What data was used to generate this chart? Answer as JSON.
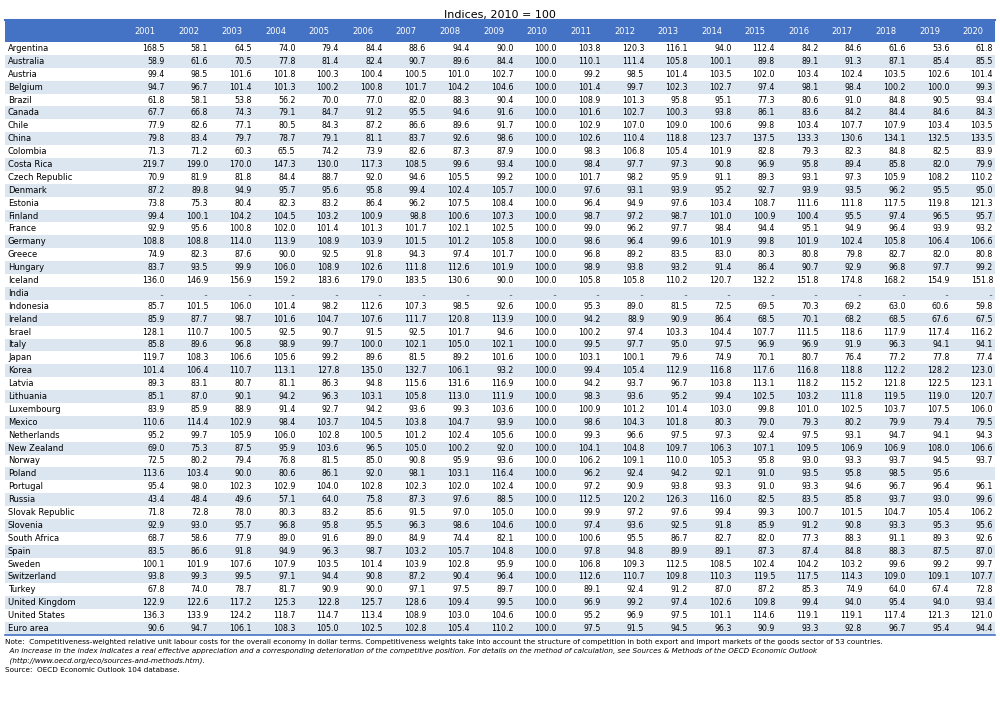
{
  "title": "Indices, 2010 = 100",
  "columns": [
    "2001",
    "2002",
    "2003",
    "2004",
    "2005",
    "2006",
    "2007",
    "2008",
    "2009",
    "2010",
    "2011",
    "2012",
    "2013",
    "2014",
    "2015",
    "2016",
    "2017",
    "2018",
    "2019",
    "2020"
  ],
  "rows": [
    [
      "Argentina",
      "168.5",
      "58.1",
      "64.5",
      "74.0",
      "79.4",
      "84.4",
      "88.6",
      "94.4",
      "90.0",
      "100.0",
      "103.8",
      "120.3",
      "116.1",
      "94.0",
      "112.4",
      "84.2",
      "84.6",
      "61.6",
      "53.6",
      "61.8"
    ],
    [
      "Australia",
      "58.9",
      "61.6",
      "70.5",
      "77.8",
      "81.4",
      "82.4",
      "90.7",
      "89.6",
      "84.4",
      "100.0",
      "110.1",
      "111.4",
      "105.8",
      "100.1",
      "89.8",
      "89.1",
      "91.3",
      "87.1",
      "85.4",
      "85.5"
    ],
    [
      "Austria",
      "99.4",
      "98.5",
      "101.6",
      "101.8",
      "100.3",
      "100.4",
      "100.5",
      "101.0",
      "102.7",
      "100.0",
      "99.2",
      "98.5",
      "101.4",
      "103.5",
      "102.0",
      "103.4",
      "102.4",
      "103.5",
      "102.6",
      "101.4"
    ],
    [
      "Belgium",
      "94.7",
      "96.7",
      "101.4",
      "101.3",
      "100.2",
      "100.8",
      "101.7",
      "104.2",
      "104.6",
      "100.0",
      "101.4",
      "99.7",
      "102.3",
      "102.7",
      "97.4",
      "98.1",
      "98.4",
      "100.2",
      "100.0",
      "99.3"
    ],
    [
      "Brazil",
      "61.8",
      "58.1",
      "53.8",
      "56.2",
      "70.0",
      "77.0",
      "82.0",
      "88.3",
      "90.4",
      "100.0",
      "108.9",
      "101.3",
      "95.8",
      "95.1",
      "77.3",
      "80.6",
      "91.0",
      "84.8",
      "90.5",
      "93.4"
    ],
    [
      "Canada",
      "67.7",
      "66.8",
      "74.3",
      "79.1",
      "84.7",
      "91.2",
      "95.5",
      "94.6",
      "91.6",
      "100.0",
      "101.6",
      "102.7",
      "100.3",
      "93.8",
      "86.1",
      "83.6",
      "84.2",
      "84.4",
      "84.6",
      "84.3"
    ],
    [
      "Chile",
      "77.9",
      "82.6",
      "77.1",
      "80.5",
      "84.3",
      "87.2",
      "86.6",
      "89.6",
      "91.7",
      "100.0",
      "102.9",
      "107.0",
      "109.0",
      "100.6",
      "99.8",
      "103.4",
      "107.7",
      "107.9",
      "103.4",
      "103.5"
    ],
    [
      "China",
      "79.8",
      "83.4",
      "79.7",
      "78.7",
      "79.1",
      "81.1",
      "83.7",
      "92.6",
      "98.6",
      "100.0",
      "102.6",
      "110.4",
      "118.8",
      "123.7",
      "137.5",
      "133.3",
      "130.6",
      "134.1",
      "132.5",
      "133.5"
    ],
    [
      "Colombia",
      "71.3",
      "71.2",
      "60.3",
      "65.5",
      "74.2",
      "73.9",
      "82.6",
      "87.3",
      "87.9",
      "100.0",
      "98.3",
      "106.8",
      "105.4",
      "101.9",
      "82.8",
      "79.3",
      "82.3",
      "84.8",
      "82.5",
      "83.9"
    ],
    [
      "Costa Rica",
      "219.7",
      "199.0",
      "170.0",
      "147.3",
      "130.0",
      "117.3",
      "108.5",
      "99.6",
      "93.4",
      "100.0",
      "98.4",
      "97.7",
      "97.3",
      "90.8",
      "96.9",
      "95.8",
      "89.4",
      "85.8",
      "82.0",
      "79.9"
    ],
    [
      "Czech Republic",
      "70.9",
      "81.9",
      "81.8",
      "84.4",
      "88.7",
      "92.0",
      "94.6",
      "105.5",
      "99.2",
      "100.0",
      "101.7",
      "98.2",
      "95.9",
      "91.1",
      "89.3",
      "93.1",
      "97.3",
      "105.9",
      "108.2",
      "110.2"
    ],
    [
      "Denmark",
      "87.2",
      "89.8",
      "94.9",
      "95.7",
      "95.6",
      "95.8",
      "99.4",
      "102.4",
      "105.7",
      "100.0",
      "97.6",
      "93.1",
      "93.9",
      "95.2",
      "92.7",
      "93.9",
      "93.5",
      "96.2",
      "95.5",
      "95.0"
    ],
    [
      "Estonia",
      "73.8",
      "75.3",
      "80.4",
      "82.3",
      "83.2",
      "86.4",
      "96.2",
      "107.5",
      "108.4",
      "100.0",
      "96.4",
      "94.9",
      "97.6",
      "103.4",
      "108.7",
      "111.6",
      "111.8",
      "117.5",
      "119.8",
      "121.3"
    ],
    [
      "Finland",
      "99.4",
      "100.1",
      "104.2",
      "104.5",
      "103.2",
      "100.9",
      "98.8",
      "100.6",
      "107.3",
      "100.0",
      "98.7",
      "97.2",
      "98.7",
      "101.0",
      "100.9",
      "100.4",
      "95.5",
      "97.4",
      "96.5",
      "95.7"
    ],
    [
      "France",
      "92.9",
      "95.6",
      "100.8",
      "102.0",
      "101.4",
      "101.3",
      "101.7",
      "102.1",
      "102.5",
      "100.0",
      "99.0",
      "96.2",
      "97.7",
      "98.4",
      "94.4",
      "95.1",
      "94.9",
      "96.4",
      "93.9",
      "93.2"
    ],
    [
      "Germany",
      "108.8",
      "108.8",
      "114.0",
      "113.9",
      "108.9",
      "103.9",
      "101.5",
      "101.2",
      "105.8",
      "100.0",
      "98.6",
      "96.4",
      "99.6",
      "101.9",
      "99.8",
      "101.9",
      "102.4",
      "105.8",
      "106.4",
      "106.6"
    ],
    [
      "Greece",
      "74.9",
      "82.3",
      "87.6",
      "90.0",
      "92.5",
      "91.8",
      "94.3",
      "97.4",
      "101.7",
      "100.0",
      "96.8",
      "89.2",
      "83.5",
      "83.0",
      "80.3",
      "80.8",
      "79.8",
      "82.7",
      "82.0",
      "80.8"
    ],
    [
      "Hungary",
      "83.7",
      "93.5",
      "99.9",
      "106.0",
      "108.9",
      "102.6",
      "111.8",
      "112.6",
      "101.9",
      "100.0",
      "98.9",
      "93.8",
      "93.2",
      "91.4",
      "86.4",
      "90.7",
      "92.9",
      "96.8",
      "97.7",
      "99.2"
    ],
    [
      "Iceland",
      "136.0",
      "146.9",
      "156.9",
      "159.2",
      "183.6",
      "179.0",
      "183.5",
      "130.6",
      "90.0",
      "100.0",
      "105.8",
      "105.8",
      "110.2",
      "120.7",
      "132.2",
      "151.8",
      "174.8",
      "168.2",
      "154.9",
      "151.8"
    ],
    [
      "India",
      "..",
      "..",
      "..",
      "..",
      "..",
      "..",
      "..",
      "..",
      "..",
      "..",
      "..",
      "..",
      "..",
      "..",
      "..",
      "..",
      "..",
      "..",
      "..",
      ".."
    ],
    [
      "Indonesia",
      "85.7",
      "101.5",
      "106.0",
      "101.4",
      "98.2",
      "112.6",
      "107.3",
      "98.5",
      "92.6",
      "100.0",
      "95.3",
      "89.0",
      "81.5",
      "72.5",
      "69.5",
      "70.3",
      "69.2",
      "63.0",
      "60.6",
      "59.8"
    ],
    [
      "Ireland",
      "85.9",
      "87.7",
      "98.7",
      "101.6",
      "104.7",
      "107.6",
      "111.7",
      "120.8",
      "113.9",
      "100.0",
      "94.2",
      "88.9",
      "90.9",
      "86.4",
      "68.5",
      "70.1",
      "68.2",
      "68.5",
      "67.6",
      "67.5"
    ],
    [
      "Israel",
      "128.1",
      "110.7",
      "100.5",
      "92.5",
      "90.7",
      "91.5",
      "92.5",
      "101.7",
      "94.6",
      "100.0",
      "100.2",
      "97.4",
      "103.3",
      "104.4",
      "107.7",
      "111.5",
      "118.6",
      "117.9",
      "117.4",
      "116.2"
    ],
    [
      "Italy",
      "85.8",
      "89.6",
      "96.8",
      "98.9",
      "99.7",
      "100.0",
      "102.1",
      "105.0",
      "102.1",
      "100.0",
      "99.5",
      "97.7",
      "95.0",
      "97.5",
      "96.9",
      "96.9",
      "91.9",
      "96.3",
      "94.1",
      "94.1"
    ],
    [
      "Japan",
      "119.7",
      "108.3",
      "106.6",
      "105.6",
      "99.2",
      "89.6",
      "81.5",
      "89.2",
      "101.6",
      "100.0",
      "103.1",
      "100.1",
      "79.6",
      "74.9",
      "70.1",
      "80.7",
      "76.4",
      "77.2",
      "77.8",
      "77.4"
    ],
    [
      "Korea",
      "101.4",
      "106.4",
      "110.7",
      "113.1",
      "127.8",
      "135.0",
      "132.7",
      "106.1",
      "93.2",
      "100.0",
      "99.4",
      "105.4",
      "112.9",
      "116.8",
      "117.6",
      "116.8",
      "118.8",
      "112.2",
      "128.2",
      "123.0"
    ],
    [
      "Latvia",
      "89.3",
      "83.1",
      "80.7",
      "81.1",
      "86.3",
      "94.8",
      "115.6",
      "131.6",
      "116.9",
      "100.0",
      "94.2",
      "93.7",
      "96.7",
      "103.8",
      "113.1",
      "118.2",
      "115.2",
      "121.8",
      "122.5",
      "123.1"
    ],
    [
      "Lithuania",
      "85.1",
      "87.0",
      "90.1",
      "94.2",
      "96.3",
      "103.1",
      "105.8",
      "113.0",
      "111.9",
      "100.0",
      "98.3",
      "93.6",
      "95.2",
      "99.4",
      "102.5",
      "103.2",
      "111.8",
      "119.5",
      "119.0",
      "120.7"
    ],
    [
      "Luxembourg",
      "83.9",
      "85.9",
      "88.9",
      "91.4",
      "92.7",
      "94.2",
      "93.6",
      "99.3",
      "103.6",
      "100.0",
      "100.9",
      "101.2",
      "101.4",
      "103.0",
      "99.8",
      "101.0",
      "102.5",
      "103.7",
      "107.5",
      "106.0"
    ],
    [
      "Mexico",
      "110.6",
      "114.4",
      "102.9",
      "98.4",
      "103.7",
      "104.5",
      "103.8",
      "104.7",
      "93.9",
      "100.0",
      "98.6",
      "104.3",
      "101.8",
      "80.3",
      "79.0",
      "79.3",
      "80.2",
      "79.9",
      "79.4",
      "79.5"
    ],
    [
      "Netherlands",
      "95.2",
      "99.7",
      "105.9",
      "106.0",
      "102.8",
      "100.5",
      "101.2",
      "102.4",
      "105.6",
      "100.0",
      "99.3",
      "96.6",
      "97.5",
      "97.3",
      "92.4",
      "97.5",
      "93.1",
      "94.7",
      "94.1",
      "94.3"
    ],
    [
      "New Zealand",
      "69.0",
      "75.3",
      "87.5",
      "95.9",
      "103.6",
      "96.5",
      "105.0",
      "100.2",
      "92.0",
      "100.0",
      "104.1",
      "104.8",
      "109.7",
      "106.3",
      "107.1",
      "109.5",
      "106.9",
      "106.9",
      "108.0",
      "106.6"
    ],
    [
      "Norway",
      "72.5",
      "80.2",
      "79.4",
      "76.8",
      "81.5",
      "85.0",
      "90.8",
      "95.9",
      "93.6",
      "100.0",
      "106.2",
      "109.1",
      "110.0",
      "105.3",
      "95.8",
      "93.0",
      "93.3",
      "93.7",
      "94.5",
      "93.7"
    ],
    [
      "Poland",
      "113.6",
      "103.4",
      "90.0",
      "80.6",
      "86.1",
      "92.0",
      "98.1",
      "103.1",
      "116.4",
      "100.0",
      "96.2",
      "92.4",
      "94.2",
      "92.1",
      "91.0",
      "93.5",
      "95.8",
      "98.5",
      "95.6",
      ""
    ],
    [
      "Portugal",
      "95.4",
      "98.0",
      "102.3",
      "102.9",
      "104.0",
      "102.8",
      "102.3",
      "102.0",
      "102.4",
      "100.0",
      "97.2",
      "90.9",
      "93.8",
      "93.3",
      "91.0",
      "93.3",
      "94.6",
      "96.7",
      "96.4",
      "96.1"
    ],
    [
      "Russia",
      "43.4",
      "48.4",
      "49.6",
      "57.1",
      "64.0",
      "75.8",
      "87.3",
      "97.6",
      "88.5",
      "100.0",
      "112.5",
      "120.2",
      "126.3",
      "116.0",
      "82.5",
      "83.5",
      "85.8",
      "93.7",
      "93.0",
      "99.6"
    ],
    [
      "Slovak Republic",
      "71.8",
      "72.8",
      "78.0",
      "80.3",
      "83.2",
      "85.6",
      "91.5",
      "97.0",
      "105.0",
      "100.0",
      "99.9",
      "97.2",
      "97.6",
      "99.4",
      "99.3",
      "100.7",
      "101.5",
      "104.7",
      "105.4",
      "106.2"
    ],
    [
      "Slovenia",
      "92.9",
      "93.0",
      "95.7",
      "96.8",
      "95.8",
      "95.5",
      "96.3",
      "98.6",
      "104.6",
      "100.0",
      "97.4",
      "93.6",
      "92.5",
      "91.8",
      "85.9",
      "91.2",
      "90.8",
      "93.3",
      "95.3",
      "95.6"
    ],
    [
      "South Africa",
      "68.7",
      "58.6",
      "77.9",
      "89.0",
      "91.6",
      "89.0",
      "84.9",
      "74.4",
      "82.1",
      "100.0",
      "100.6",
      "95.5",
      "86.7",
      "82.7",
      "82.0",
      "77.3",
      "88.3",
      "91.1",
      "89.3",
      "92.6"
    ],
    [
      "Spain",
      "83.5",
      "86.6",
      "91.8",
      "94.9",
      "96.3",
      "98.7",
      "103.2",
      "105.7",
      "104.8",
      "100.0",
      "97.8",
      "94.8",
      "89.9",
      "89.1",
      "87.3",
      "87.4",
      "84.8",
      "88.3",
      "87.5",
      "87.0"
    ],
    [
      "Sweden",
      "100.1",
      "101.9",
      "107.6",
      "107.9",
      "103.5",
      "101.4",
      "103.9",
      "102.8",
      "95.9",
      "100.0",
      "106.8",
      "109.3",
      "112.5",
      "108.5",
      "102.4",
      "104.2",
      "103.2",
      "99.6",
      "99.2",
      "99.7"
    ],
    [
      "Switzerland",
      "93.8",
      "99.3",
      "99.5",
      "97.1",
      "94.4",
      "90.8",
      "87.2",
      "90.4",
      "96.4",
      "100.0",
      "112.6",
      "110.7",
      "109.8",
      "110.3",
      "119.5",
      "117.5",
      "114.3",
      "109.0",
      "109.1",
      "107.7"
    ],
    [
      "Turkey",
      "67.8",
      "74.0",
      "78.7",
      "81.7",
      "90.9",
      "90.0",
      "97.1",
      "97.5",
      "89.7",
      "100.0",
      "89.1",
      "92.4",
      "91.2",
      "87.0",
      "87.2",
      "85.3",
      "74.9",
      "64.0",
      "67.4",
      "72.8"
    ],
    [
      "United Kingdom",
      "122.9",
      "122.6",
      "117.2",
      "125.3",
      "122.8",
      "125.7",
      "128.6",
      "109.4",
      "99.5",
      "100.0",
      "96.9",
      "99.2",
      "97.4",
      "102.6",
      "109.8",
      "99.4",
      "94.0",
      "95.4",
      "94.0",
      "93.4"
    ],
    [
      "United States",
      "136.3",
      "133.9",
      "124.2",
      "118.7",
      "114.7",
      "113.4",
      "108.9",
      "103.0",
      "104.6",
      "100.0",
      "95.2",
      "96.9",
      "97.5",
      "101.1",
      "114.6",
      "119.1",
      "119.1",
      "117.4",
      "121.3",
      "121.0"
    ],
    [
      "Euro area",
      "90.6",
      "94.7",
      "106.1",
      "108.3",
      "105.0",
      "102.5",
      "102.8",
      "105.4",
      "110.2",
      "100.0",
      "97.5",
      "91.5",
      "94.5",
      "96.3",
      "90.9",
      "93.3",
      "92.8",
      "96.7",
      "95.4",
      "94.4"
    ]
  ],
  "note_line1": "Note:  Competitiveness-weighted relative unit labour costs for the overall economy in dollar terms. Competitiveness weights take into account the structure of competition in both export and import markets of the goods sector of 53 countries.",
  "note_line2": "  An increase in the index indicates a real effective appreciation and a corresponding deterioration of the competitive position. For details on the method of calculation, see Sources & Methods of the OECD Economic Outlook",
  "note_line3": "  (http://www.oecd.org/eco/sources-and-methods.htm).",
  "source_text": "Source:  OECD Economic Outlook 104 database.",
  "header_bg": "#4472C4",
  "header_fg": "#FFFFFF",
  "alt_row_bg": "#DCE6F1",
  "normal_row_bg": "#FFFFFF",
  "title_fontsize": 8.0,
  "header_fontsize": 6.0,
  "data_fontsize": 5.7,
  "country_fontsize": 6.0,
  "note_fontsize": 5.2
}
